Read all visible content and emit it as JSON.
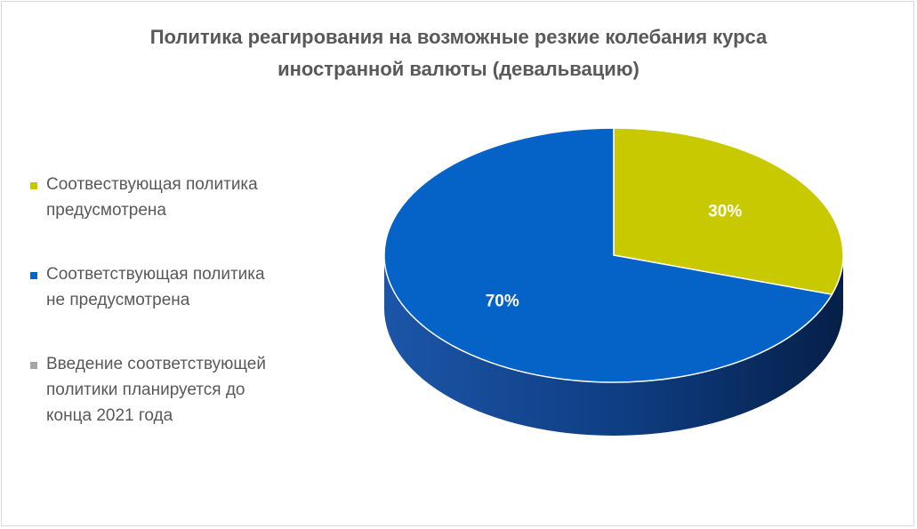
{
  "chart_data": {
    "type": "pie",
    "title_lines": [
      "Политика реагирования на возможные резкие колебания курса",
      "иностранной валюты (девальвацию)"
    ],
    "categories": [
      "Соотвествующая политика предусмотрена",
      "Соответствующая политика не предусмотрена",
      "Введение соответствующей политики планируется до конца 2021 года"
    ],
    "legend_lines": [
      [
        "Соотвествующая политика",
        "предусмотрена"
      ],
      [
        "Соответствующая политика",
        "не предусмотрена"
      ],
      [
        "Введение соответствующей",
        "политики планируется до",
        "конца 2021 года"
      ]
    ],
    "values": [
      30,
      70,
      0
    ],
    "labels": [
      "30%",
      "70%",
      ""
    ],
    "colors": [
      "#c9c900",
      "#0563c7",
      "#a5a5a5"
    ],
    "legend_position": "left",
    "style": "3d"
  }
}
